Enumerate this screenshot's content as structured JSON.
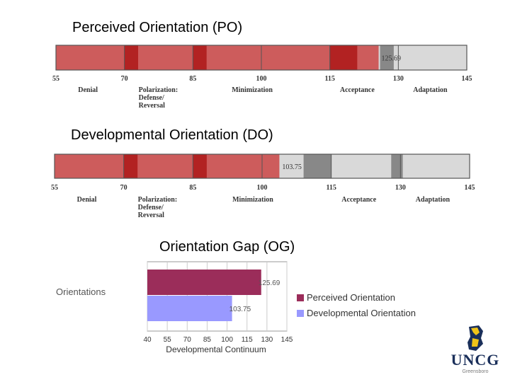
{
  "titles": {
    "po": "Perceived Orientation (PO)",
    "do": "Developmental Orientation (DO)",
    "og": "Orientation Gap (OG)"
  },
  "colors": {
    "band": "#cd5c5c",
    "band_dark": "#b22222",
    "gray_light": "#d9d9d9",
    "gray_dark": "#888888",
    "perceived": "#9b2d5a",
    "developmental": "#9999ff",
    "logo_navy": "#1a2f5a",
    "logo_gold": "#f0c419"
  },
  "logo": {
    "name": "UNCG",
    "subtitle": "Greensboro"
  },
  "chart_data": [
    {
      "type": "bar",
      "subtype": "idi-continuum",
      "title": "Perceived Orientation (PO)",
      "x_ticks": [
        55,
        70,
        85,
        100,
        115,
        130,
        145
      ],
      "xlim": [
        55,
        145
      ],
      "score": 125.69,
      "score_label": "125.69",
      "dark_bands": [
        [
          70,
          73
        ],
        [
          85,
          88
        ],
        [
          115,
          121
        ]
      ],
      "score_bar": [
        126,
        129
      ],
      "stages": [
        "Denial",
        "Polarization: Defense/ Reversal",
        "Minimization",
        "Acceptance",
        "Adaptation"
      ]
    },
    {
      "type": "bar",
      "subtype": "idi-continuum",
      "title": "Developmental Orientation (DO)",
      "x_ticks": [
        55,
        70,
        85,
        100,
        115,
        130,
        145
      ],
      "xlim": [
        55,
        145
      ],
      "score": 103.75,
      "score_label": "103.75",
      "dark_bands": [
        [
          70,
          73
        ],
        [
          85,
          88
        ]
      ],
      "gray_bands": [
        [
          109,
          115
        ],
        [
          128,
          130.5
        ]
      ],
      "stages": [
        "Denial",
        "Polarization: Defense/ Reversal",
        "Minimization",
        "Acceptance",
        "Adaptation"
      ]
    },
    {
      "type": "bar",
      "orientation": "horizontal",
      "title": "Orientation Gap (OG)",
      "category_label": "Orientations",
      "xlabel": "Developmental Continuum",
      "x_ticks": [
        40,
        55,
        70,
        85,
        100,
        115,
        130,
        145
      ],
      "xlim": [
        40,
        145
      ],
      "series": [
        {
          "name": "Perceived Orientation",
          "value": 125.69,
          "label": "125.69"
        },
        {
          "name": "Developmental Orientation",
          "value": 103.75,
          "label": "103.75"
        }
      ],
      "legend": "right",
      "grid": true
    }
  ]
}
